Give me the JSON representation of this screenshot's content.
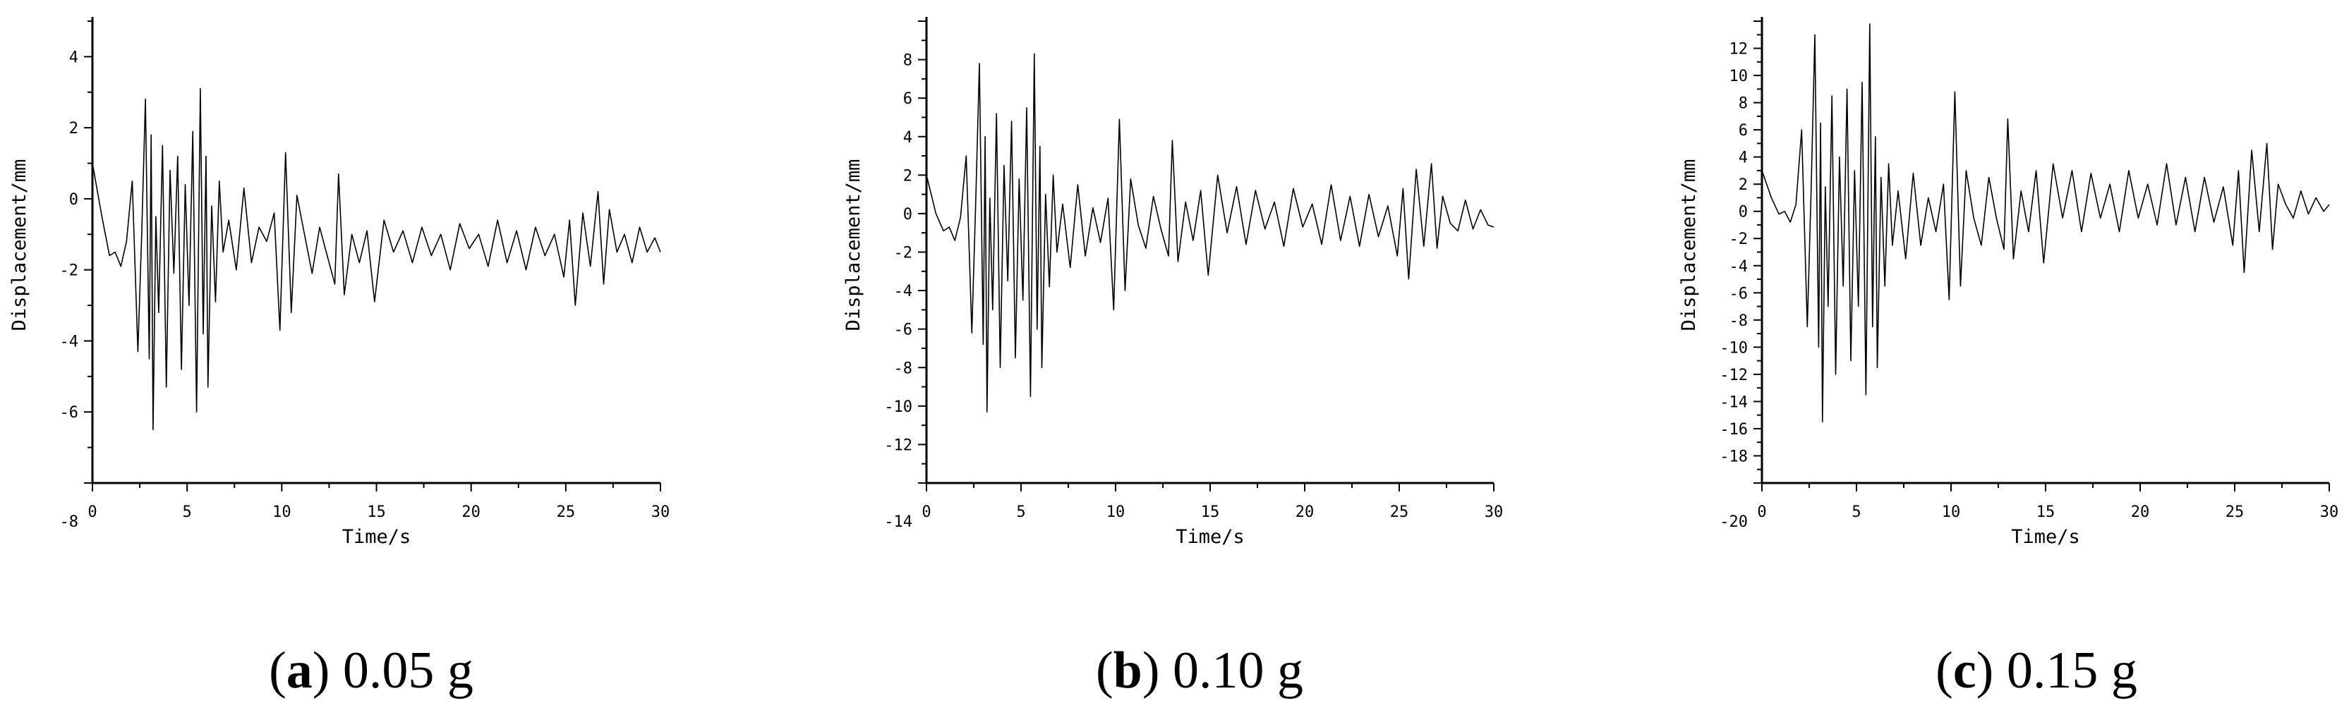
{
  "chart_data": [
    {
      "type": "line",
      "caption": {
        "open": "(",
        "letter": "a",
        "rest": ") 0.05 g"
      },
      "xlabel": "Time/s",
      "ylabel": "Displacement/mm",
      "xlim": [
        0,
        30
      ],
      "ylim": [
        -8,
        5
      ],
      "xticks": [
        "0",
        "5",
        "10",
        "15",
        "20",
        "25",
        "30"
      ],
      "yticks": [
        "-8",
        "-6",
        "-4",
        "-2",
        "0",
        "2",
        "4"
      ],
      "series": [
        {
          "color": "#000000",
          "x": [
            0,
            0.5,
            0.9,
            1.2,
            1.5,
            1.8,
            2.1,
            2.4,
            2.6,
            2.8,
            3.0,
            3.1,
            3.2,
            3.35,
            3.5,
            3.7,
            3.9,
            4.1,
            4.3,
            4.5,
            4.7,
            4.9,
            5.1,
            5.3,
            5.5,
            5.7,
            5.85,
            6.0,
            6.1,
            6.3,
            6.5,
            6.7,
            6.9,
            7.2,
            7.6,
            8.0,
            8.4,
            8.8,
            9.2,
            9.6,
            9.9,
            10.2,
            10.5,
            10.8,
            11.2,
            11.6,
            12.0,
            12.4,
            12.8,
            13.0,
            13.3,
            13.7,
            14.1,
            14.5,
            14.9,
            15.4,
            15.9,
            16.4,
            16.9,
            17.4,
            17.9,
            18.4,
            18.9,
            19.4,
            19.9,
            20.4,
            20.9,
            21.4,
            21.9,
            22.4,
            22.9,
            23.4,
            23.9,
            24.4,
            24.9,
            25.2,
            25.5,
            25.9,
            26.3,
            26.7,
            27.0,
            27.3,
            27.7,
            28.1,
            28.5,
            28.9,
            29.3,
            29.7,
            30.0
          ],
          "y": [
            1.0,
            -0.5,
            -1.6,
            -1.5,
            -1.9,
            -1.2,
            0.5,
            -4.3,
            -1.0,
            2.8,
            -4.5,
            1.8,
            -6.5,
            -0.5,
            -3.2,
            1.5,
            -5.3,
            0.8,
            -2.1,
            1.2,
            -4.8,
            0.4,
            -3.0,
            1.9,
            -6.0,
            3.1,
            -3.8,
            1.2,
            -5.3,
            -0.2,
            -2.9,
            0.5,
            -1.5,
            -0.6,
            -2.0,
            0.3,
            -1.8,
            -0.8,
            -1.2,
            -0.4,
            -3.7,
            1.3,
            -3.2,
            0.1,
            -1.0,
            -2.1,
            -0.8,
            -1.6,
            -2.4,
            0.7,
            -2.7,
            -1.0,
            -1.8,
            -0.9,
            -2.9,
            -0.6,
            -1.5,
            -0.9,
            -1.8,
            -0.8,
            -1.6,
            -1.0,
            -2.0,
            -0.7,
            -1.4,
            -1.0,
            -1.9,
            -0.6,
            -1.8,
            -0.9,
            -2.0,
            -0.8,
            -1.6,
            -1.0,
            -2.2,
            -0.6,
            -3.0,
            -0.4,
            -1.9,
            0.2,
            -2.4,
            -0.3,
            -1.5,
            -1.0,
            -1.8,
            -0.8,
            -1.5,
            -1.1,
            -1.5
          ]
        }
      ]
    },
    {
      "type": "line",
      "caption": {
        "open": "(",
        "letter": "b",
        "rest": ") 0.10 g"
      },
      "xlabel": "Time/s",
      "ylabel": "Displacement/mm",
      "xlim": [
        0,
        30
      ],
      "ylim": [
        -14,
        10
      ],
      "xticks": [
        "0",
        "5",
        "10",
        "15",
        "20",
        "25",
        "30"
      ],
      "yticks": [
        "-14",
        "-12",
        "-10",
        "-8",
        "-6",
        "-4",
        "-2",
        "0",
        "2",
        "4",
        "6",
        "8"
      ],
      "series": [
        {
          "color": "#000000",
          "x": [
            0,
            0.5,
            0.9,
            1.2,
            1.5,
            1.8,
            2.1,
            2.4,
            2.6,
            2.8,
            3.0,
            3.1,
            3.2,
            3.35,
            3.5,
            3.7,
            3.9,
            4.1,
            4.3,
            4.5,
            4.7,
            4.9,
            5.1,
            5.3,
            5.5,
            5.7,
            5.85,
            6.0,
            6.1,
            6.3,
            6.5,
            6.7,
            6.9,
            7.2,
            7.6,
            8.0,
            8.4,
            8.8,
            9.2,
            9.6,
            9.9,
            10.2,
            10.5,
            10.8,
            11.2,
            11.6,
            12.0,
            12.4,
            12.8,
            13.0,
            13.3,
            13.7,
            14.1,
            14.5,
            14.9,
            15.4,
            15.9,
            16.4,
            16.9,
            17.4,
            17.9,
            18.4,
            18.9,
            19.4,
            19.9,
            20.4,
            20.9,
            21.4,
            21.9,
            22.4,
            22.9,
            23.4,
            23.9,
            24.4,
            24.9,
            25.2,
            25.5,
            25.9,
            26.3,
            26.7,
            27.0,
            27.3,
            27.7,
            28.1,
            28.5,
            28.9,
            29.3,
            29.7,
            30.0
          ],
          "y": [
            2.0,
            0.0,
            -0.9,
            -0.7,
            -1.4,
            -0.2,
            3.0,
            -6.2,
            0.5,
            7.8,
            -6.8,
            4.0,
            -10.3,
            0.8,
            -5.0,
            5.2,
            -8.0,
            2.5,
            -3.5,
            4.8,
            -7.5,
            1.8,
            -4.5,
            5.5,
            -9.5,
            8.3,
            -6.0,
            3.5,
            -8.0,
            1.0,
            -3.8,
            2.0,
            -2.0,
            0.5,
            -2.8,
            1.5,
            -2.2,
            0.3,
            -1.5,
            0.8,
            -5.0,
            4.9,
            -4.0,
            1.8,
            -0.6,
            -1.8,
            0.9,
            -0.8,
            -2.2,
            3.8,
            -2.5,
            0.6,
            -1.4,
            1.2,
            -3.2,
            2.0,
            -1.0,
            1.4,
            -1.6,
            1.2,
            -0.8,
            0.6,
            -1.7,
            1.3,
            -0.7,
            0.5,
            -1.6,
            1.5,
            -1.4,
            0.9,
            -1.7,
            1.0,
            -1.2,
            0.4,
            -2.2,
            1.3,
            -3.4,
            2.3,
            -1.7,
            2.6,
            -1.8,
            0.9,
            -0.5,
            -0.9,
            0.7,
            -0.8,
            0.2,
            -0.6,
            -0.7
          ]
        }
      ]
    },
    {
      "type": "line",
      "caption": {
        "open": "(",
        "letter": "c",
        "rest": ") 0.15 g"
      },
      "xlabel": "Time/s",
      "ylabel": "Displacement/mm",
      "xlim": [
        0,
        30
      ],
      "ylim": [
        -20,
        14
      ],
      "xticks": [
        "0",
        "5",
        "10",
        "15",
        "20",
        "25",
        "30"
      ],
      "yticks": [
        "-20",
        "-18",
        "-16",
        "-14",
        "-12",
        "-10",
        "-8",
        "-6",
        "-4",
        "-2",
        "0",
        "2",
        "4",
        "6",
        "8",
        "10",
        "12"
      ],
      "series": [
        {
          "color": "#000000",
          "x": [
            0,
            0.5,
            0.9,
            1.2,
            1.5,
            1.8,
            2.1,
            2.4,
            2.6,
            2.8,
            3.0,
            3.1,
            3.2,
            3.35,
            3.5,
            3.7,
            3.9,
            4.1,
            4.3,
            4.5,
            4.7,
            4.9,
            5.1,
            5.3,
            5.5,
            5.7,
            5.85,
            6.0,
            6.1,
            6.3,
            6.5,
            6.7,
            6.9,
            7.2,
            7.6,
            8.0,
            8.4,
            8.8,
            9.2,
            9.6,
            9.9,
            10.2,
            10.5,
            10.8,
            11.2,
            11.6,
            12.0,
            12.4,
            12.8,
            13.0,
            13.3,
            13.7,
            14.1,
            14.5,
            14.9,
            15.4,
            15.9,
            16.4,
            16.9,
            17.4,
            17.9,
            18.4,
            18.9,
            19.4,
            19.9,
            20.4,
            20.9,
            21.4,
            21.9,
            22.4,
            22.9,
            23.4,
            23.9,
            24.4,
            24.9,
            25.2,
            25.5,
            25.9,
            26.3,
            26.7,
            27.0,
            27.3,
            27.7,
            28.1,
            28.5,
            28.9,
            29.3,
            29.7,
            30.0
          ],
          "y": [
            3.0,
            1.0,
            -0.2,
            0.0,
            -0.8,
            0.5,
            6.0,
            -8.5,
            1.5,
            13.0,
            -10.0,
            6.5,
            -15.5,
            1.8,
            -7.0,
            8.5,
            -12.0,
            4.0,
            -5.5,
            9.0,
            -11.0,
            3.0,
            -7.0,
            9.5,
            -13.5,
            13.8,
            -8.5,
            5.5,
            -11.5,
            2.5,
            -5.5,
            3.5,
            -2.5,
            1.5,
            -3.5,
            2.8,
            -2.5,
            1.0,
            -1.5,
            2.0,
            -6.5,
            8.8,
            -5.5,
            3.0,
            -0.5,
            -2.5,
            2.5,
            -0.5,
            -2.8,
            6.8,
            -3.5,
            1.5,
            -1.5,
            3.0,
            -3.8,
            3.5,
            -0.5,
            3.0,
            -1.5,
            2.8,
            -0.5,
            2.0,
            -1.5,
            3.0,
            -0.5,
            2.0,
            -1.0,
            3.5,
            -1.0,
            2.5,
            -1.5,
            2.5,
            -0.8,
            1.8,
            -2.5,
            3.0,
            -4.5,
            4.5,
            -1.5,
            5.0,
            -2.8,
            2.0,
            0.5,
            -0.5,
            1.5,
            -0.2,
            1.0,
            0.0,
            0.5
          ]
        }
      ]
    }
  ]
}
